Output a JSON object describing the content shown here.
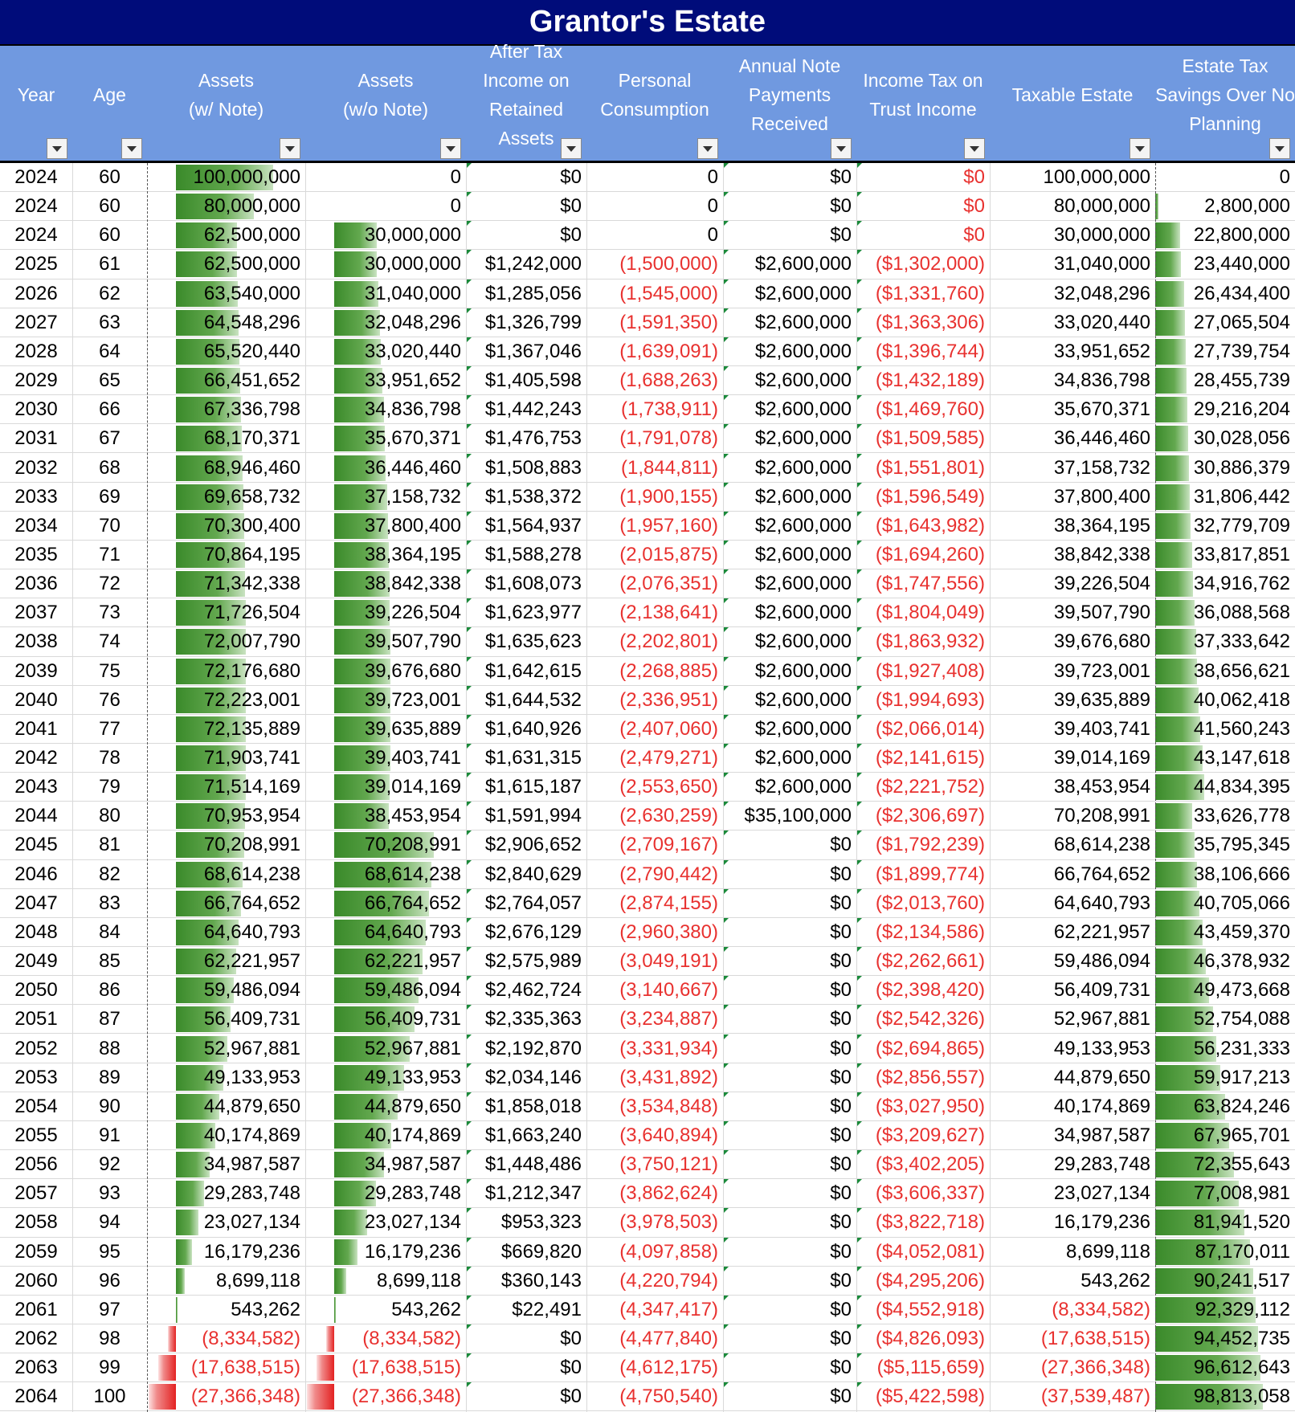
{
  "title": "Grantor's Estate",
  "columns": [
    {
      "key": "year",
      "label": "Year"
    },
    {
      "key": "age",
      "label": "Age"
    },
    {
      "key": "assets_note",
      "label": "Assets\n(w/ Note)"
    },
    {
      "key": "assets_no_note",
      "label": "Assets\n(w/o Note)"
    },
    {
      "key": "after_tax",
      "label": "After Tax\nIncome on\nRetained\nAssets"
    },
    {
      "key": "consumption",
      "label": "Personal\nConsumption"
    },
    {
      "key": "note_payments",
      "label": "Annual Note\nPayments\nReceived"
    },
    {
      "key": "income_tax",
      "label": "Income Tax on\nTrust Income"
    },
    {
      "key": "taxable_estate",
      "label": "Taxable Estate"
    },
    {
      "key": "savings",
      "label": "Estate Tax\nSavings Over No\nPlanning"
    }
  ],
  "rows": [
    [
      "2024",
      "60",
      "100,000,000",
      "0",
      "$0",
      "0",
      "$0",
      "$0",
      "100,000,000",
      "0"
    ],
    [
      "2024",
      "60",
      "80,000,000",
      "0",
      "$0",
      "0",
      "$0",
      "$0",
      "80,000,000",
      "2,800,000"
    ],
    [
      "2024",
      "60",
      "62,500,000",
      "30,000,000",
      "$0",
      "0",
      "$0",
      "$0",
      "30,000,000",
      "22,800,000"
    ],
    [
      "2025",
      "61",
      "62,500,000",
      "30,000,000",
      "$1,242,000",
      "(1,500,000)",
      "$2,600,000",
      "($1,302,000)",
      "31,040,000",
      "23,440,000"
    ],
    [
      "2026",
      "62",
      "63,540,000",
      "31,040,000",
      "$1,285,056",
      "(1,545,000)",
      "$2,600,000",
      "($1,331,760)",
      "32,048,296",
      "26,434,400"
    ],
    [
      "2027",
      "63",
      "64,548,296",
      "32,048,296",
      "$1,326,799",
      "(1,591,350)",
      "$2,600,000",
      "($1,363,306)",
      "33,020,440",
      "27,065,504"
    ],
    [
      "2028",
      "64",
      "65,520,440",
      "33,020,440",
      "$1,367,046",
      "(1,639,091)",
      "$2,600,000",
      "($1,396,744)",
      "33,951,652",
      "27,739,754"
    ],
    [
      "2029",
      "65",
      "66,451,652",
      "33,951,652",
      "$1,405,598",
      "(1,688,263)",
      "$2,600,000",
      "($1,432,189)",
      "34,836,798",
      "28,455,739"
    ],
    [
      "2030",
      "66",
      "67,336,798",
      "34,836,798",
      "$1,442,243",
      "(1,738,911)",
      "$2,600,000",
      "($1,469,760)",
      "35,670,371",
      "29,216,204"
    ],
    [
      "2031",
      "67",
      "68,170,371",
      "35,670,371",
      "$1,476,753",
      "(1,791,078)",
      "$2,600,000",
      "($1,509,585)",
      "36,446,460",
      "30,028,056"
    ],
    [
      "2032",
      "68",
      "68,946,460",
      "36,446,460",
      "$1,508,883",
      "(1,844,811)",
      "$2,600,000",
      "($1,551,801)",
      "37,158,732",
      "30,886,379"
    ],
    [
      "2033",
      "69",
      "69,658,732",
      "37,158,732",
      "$1,538,372",
      "(1,900,155)",
      "$2,600,000",
      "($1,596,549)",
      "37,800,400",
      "31,806,442"
    ],
    [
      "2034",
      "70",
      "70,300,400",
      "37,800,400",
      "$1,564,937",
      "(1,957,160)",
      "$2,600,000",
      "($1,643,982)",
      "38,364,195",
      "32,779,709"
    ],
    [
      "2035",
      "71",
      "70,864,195",
      "38,364,195",
      "$1,588,278",
      "(2,015,875)",
      "$2,600,000",
      "($1,694,260)",
      "38,842,338",
      "33,817,851"
    ],
    [
      "2036",
      "72",
      "71,342,338",
      "38,842,338",
      "$1,608,073",
      "(2,076,351)",
      "$2,600,000",
      "($1,747,556)",
      "39,226,504",
      "34,916,762"
    ],
    [
      "2037",
      "73",
      "71,726,504",
      "39,226,504",
      "$1,623,977",
      "(2,138,641)",
      "$2,600,000",
      "($1,804,049)",
      "39,507,790",
      "36,088,568"
    ],
    [
      "2038",
      "74",
      "72,007,790",
      "39,507,790",
      "$1,635,623",
      "(2,202,801)",
      "$2,600,000",
      "($1,863,932)",
      "39,676,680",
      "37,333,642"
    ],
    [
      "2039",
      "75",
      "72,176,680",
      "39,676,680",
      "$1,642,615",
      "(2,268,885)",
      "$2,600,000",
      "($1,927,408)",
      "39,723,001",
      "38,656,621"
    ],
    [
      "2040",
      "76",
      "72,223,001",
      "39,723,001",
      "$1,644,532",
      "(2,336,951)",
      "$2,600,000",
      "($1,994,693)",
      "39,635,889",
      "40,062,418"
    ],
    [
      "2041",
      "77",
      "72,135,889",
      "39,635,889",
      "$1,640,926",
      "(2,407,060)",
      "$2,600,000",
      "($2,066,014)",
      "39,403,741",
      "41,560,243"
    ],
    [
      "2042",
      "78",
      "71,903,741",
      "39,403,741",
      "$1,631,315",
      "(2,479,271)",
      "$2,600,000",
      "($2,141,615)",
      "39,014,169",
      "43,147,618"
    ],
    [
      "2043",
      "79",
      "71,514,169",
      "39,014,169",
      "$1,615,187",
      "(2,553,650)",
      "$2,600,000",
      "($2,221,752)",
      "38,453,954",
      "44,834,395"
    ],
    [
      "2044",
      "80",
      "70,953,954",
      "38,453,954",
      "$1,591,994",
      "(2,630,259)",
      "$35,100,000",
      "($2,306,697)",
      "70,208,991",
      "33,626,778"
    ],
    [
      "2045",
      "81",
      "70,208,991",
      "70,208,991",
      "$2,906,652",
      "(2,709,167)",
      "$0",
      "($1,792,239)",
      "68,614,238",
      "35,795,345"
    ],
    [
      "2046",
      "82",
      "68,614,238",
      "68,614,238",
      "$2,840,629",
      "(2,790,442)",
      "$0",
      "($1,899,774)",
      "66,764,652",
      "38,106,666"
    ],
    [
      "2047",
      "83",
      "66,764,652",
      "66,764,652",
      "$2,764,057",
      "(2,874,155)",
      "$0",
      "($2,013,760)",
      "64,640,793",
      "40,705,066"
    ],
    [
      "2048",
      "84",
      "64,640,793",
      "64,640,793",
      "$2,676,129",
      "(2,960,380)",
      "$0",
      "($2,134,586)",
      "62,221,957",
      "43,459,370"
    ],
    [
      "2049",
      "85",
      "62,221,957",
      "62,221,957",
      "$2,575,989",
      "(3,049,191)",
      "$0",
      "($2,262,661)",
      "59,486,094",
      "46,378,932"
    ],
    [
      "2050",
      "86",
      "59,486,094",
      "59,486,094",
      "$2,462,724",
      "(3,140,667)",
      "$0",
      "($2,398,420)",
      "56,409,731",
      "49,473,668"
    ],
    [
      "2051",
      "87",
      "56,409,731",
      "56,409,731",
      "$2,335,363",
      "(3,234,887)",
      "$0",
      "($2,542,326)",
      "52,967,881",
      "52,754,088"
    ],
    [
      "2052",
      "88",
      "52,967,881",
      "52,967,881",
      "$2,192,870",
      "(3,331,934)",
      "$0",
      "($2,694,865)",
      "49,133,953",
      "56,231,333"
    ],
    [
      "2053",
      "89",
      "49,133,953",
      "49,133,953",
      "$2,034,146",
      "(3,431,892)",
      "$0",
      "($2,856,557)",
      "44,879,650",
      "59,917,213"
    ],
    [
      "2054",
      "90",
      "44,879,650",
      "44,879,650",
      "$1,858,018",
      "(3,534,848)",
      "$0",
      "($3,027,950)",
      "40,174,869",
      "63,824,246"
    ],
    [
      "2055",
      "91",
      "40,174,869",
      "40,174,869",
      "$1,663,240",
      "(3,640,894)",
      "$0",
      "($3,209,627)",
      "34,987,587",
      "67,965,701"
    ],
    [
      "2056",
      "92",
      "34,987,587",
      "34,987,587",
      "$1,448,486",
      "(3,750,121)",
      "$0",
      "($3,402,205)",
      "29,283,748",
      "72,355,643"
    ],
    [
      "2057",
      "93",
      "29,283,748",
      "29,283,748",
      "$1,212,347",
      "(3,862,624)",
      "$0",
      "($3,606,337)",
      "23,027,134",
      "77,008,981"
    ],
    [
      "2058",
      "94",
      "23,027,134",
      "23,027,134",
      "$953,323",
      "(3,978,503)",
      "$0",
      "($3,822,718)",
      "16,179,236",
      "81,941,520"
    ],
    [
      "2059",
      "95",
      "16,179,236",
      "16,179,236",
      "$669,820",
      "(4,097,858)",
      "$0",
      "($4,052,081)",
      "8,699,118",
      "87,170,011"
    ],
    [
      "2060",
      "96",
      "8,699,118",
      "8,699,118",
      "$360,143",
      "(4,220,794)",
      "$0",
      "($4,295,206)",
      "543,262",
      "90,241,517"
    ],
    [
      "2061",
      "97",
      "543,262",
      "543,262",
      "$22,491",
      "(4,347,417)",
      "$0",
      "($4,552,918)",
      "(8,334,582)",
      "92,329,112"
    ],
    [
      "2062",
      "98",
      "(8,334,582)",
      "(8,334,582)",
      "$0",
      "(4,477,840)",
      "$0",
      "($4,826,093)",
      "(17,638,515)",
      "94,452,735"
    ],
    [
      "2063",
      "99",
      "(17,638,515)",
      "(17,638,515)",
      "$0",
      "(4,612,175)",
      "$0",
      "($5,115,659)",
      "(27,366,348)",
      "96,612,643"
    ],
    [
      "2064",
      "100",
      "(27,366,348)",
      "(27,366,348)",
      "$0",
      "(4,750,540)",
      "$0",
      "($5,422,598)",
      "(37,539,487)",
      "98,813,058"
    ]
  ],
  "data_bar_columns": [
    "assets_note",
    "assets_no_note",
    "savings"
  ],
  "colors": {
    "title_bg": "#000c7a",
    "header_bg": "#7099e0",
    "positive_bar": "#3a8a2a",
    "negative_bar": "#e32222",
    "negative_text": "#e8312f",
    "indicator": "#1a8a3a"
  },
  "icons": {
    "filter": "dropdown-arrow-icon"
  }
}
